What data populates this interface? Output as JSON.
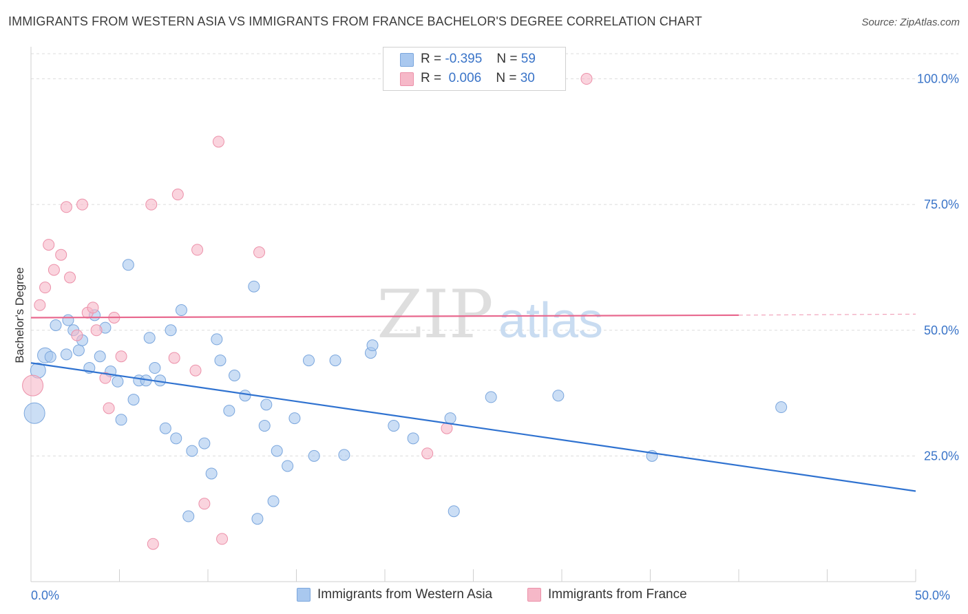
{
  "title": "IMMIGRANTS FROM WESTERN ASIA VS IMMIGRANTS FROM FRANCE BACHELOR'S DEGREE CORRELATION CHART",
  "source": "Source: ZipAtlas.com",
  "watermark": {
    "zip": "ZIP",
    "atlas": "atlas"
  },
  "legend": {
    "rows": [
      {
        "r_label": "R =",
        "r_value": "-0.395",
        "n_label": "N =",
        "n_value": "59",
        "color": "#a9c8ef"
      },
      {
        "r_label": "R =",
        "r_value": "0.006",
        "n_label": "N =",
        "n_value": "30",
        "color": "#f6b8c8"
      }
    ]
  },
  "bottom_legend": [
    {
      "label": "Immigrants from Western Asia",
      "color": "#a9c8ef"
    },
    {
      "label": "Immigrants from France",
      "color": "#f6b8c8"
    }
  ],
  "chart_data": {
    "type": "scatter",
    "ylabel": "Bachelor's Degree",
    "xlabel": "",
    "xlim": [
      0,
      50
    ],
    "ylim": [
      0,
      105
    ],
    "x_tick_labels": [
      {
        "value": 0,
        "label": "0.0%"
      },
      {
        "value": 50,
        "label": "50.0%"
      }
    ],
    "y_tick_labels": [
      {
        "value": 100,
        "label": "100.0%"
      },
      {
        "value": 75,
        "label": "75.0%"
      },
      {
        "value": 50,
        "label": "50.0%"
      },
      {
        "value": 25,
        "label": "25.0%"
      }
    ],
    "series": [
      {
        "name": "Immigrants from Western Asia",
        "color": "#a9c8ef",
        "stroke": "#7aa6dd",
        "trend_color": "#2f72d0",
        "trend": {
          "x0": 0,
          "y0": 43.5,
          "x1": 50,
          "y1": 18.0
        },
        "points": [
          [
            0.2,
            33.5,
            3
          ],
          [
            0.4,
            42.0,
            2
          ],
          [
            0.8,
            45.0,
            2
          ],
          [
            1.1,
            44.7,
            1
          ],
          [
            1.4,
            51.0,
            1
          ],
          [
            2.0,
            45.2,
            1
          ],
          [
            2.1,
            52.0,
            1
          ],
          [
            2.4,
            50.0,
            1
          ],
          [
            2.7,
            46.0,
            1
          ],
          [
            2.9,
            48.0,
            1
          ],
          [
            3.3,
            42.5,
            1
          ],
          [
            3.6,
            53.0,
            1
          ],
          [
            3.9,
            44.8,
            1
          ],
          [
            4.2,
            50.5,
            1
          ],
          [
            4.5,
            41.8,
            1
          ],
          [
            4.9,
            39.8,
            1
          ],
          [
            5.1,
            32.2,
            1
          ],
          [
            5.5,
            63.0,
            1
          ],
          [
            5.8,
            36.2,
            1
          ],
          [
            6.1,
            40.0,
            1
          ],
          [
            6.5,
            40.0,
            1
          ],
          [
            6.7,
            48.5,
            1
          ],
          [
            7.0,
            42.5,
            1
          ],
          [
            7.3,
            40.0,
            1
          ],
          [
            7.6,
            30.5,
            1
          ],
          [
            7.9,
            50.0,
            1
          ],
          [
            8.2,
            28.5,
            1
          ],
          [
            8.5,
            54.0,
            1
          ],
          [
            8.9,
            13.0,
            1
          ],
          [
            9.1,
            26.0,
            1
          ],
          [
            9.8,
            27.5,
            1
          ],
          [
            10.2,
            21.5,
            1
          ],
          [
            10.5,
            48.2,
            1
          ],
          [
            10.7,
            44.0,
            1
          ],
          [
            11.2,
            34.0,
            1
          ],
          [
            11.5,
            41.0,
            1
          ],
          [
            12.1,
            37.0,
            1
          ],
          [
            12.6,
            58.7,
            1
          ],
          [
            12.8,
            12.5,
            1
          ],
          [
            13.2,
            31.0,
            1
          ],
          [
            13.3,
            35.2,
            1
          ],
          [
            13.7,
            16.0,
            1
          ],
          [
            13.9,
            26.0,
            1
          ],
          [
            14.5,
            23.0,
            1
          ],
          [
            14.9,
            32.5,
            1
          ],
          [
            15.7,
            44.0,
            1
          ],
          [
            16.0,
            25.0,
            1
          ],
          [
            17.2,
            44.0,
            1
          ],
          [
            17.7,
            25.2,
            1
          ],
          [
            19.2,
            45.5,
            1
          ],
          [
            19.3,
            47.0,
            1
          ],
          [
            20.5,
            31.0,
            1
          ],
          [
            21.6,
            28.5,
            1
          ],
          [
            23.7,
            32.5,
            1
          ],
          [
            23.9,
            14.0,
            1
          ],
          [
            26.0,
            36.7,
            1
          ],
          [
            29.8,
            37.0,
            1
          ],
          [
            35.1,
            25.0,
            1
          ],
          [
            42.4,
            34.7,
            1
          ]
        ]
      },
      {
        "name": "Immigrants from France",
        "color": "#f6b8c8",
        "stroke": "#ec90a9",
        "trend_color": "#e8688e",
        "trend": {
          "x0": 0,
          "y0": 52.5,
          "x1": 40,
          "y1": 53.0,
          "x2": 50,
          "y2": 53.2
        },
        "points": [
          [
            0.1,
            39.0,
            3
          ],
          [
            0.5,
            55.0,
            1
          ],
          [
            0.8,
            58.5,
            1
          ],
          [
            1.0,
            67.0,
            1
          ],
          [
            1.3,
            62.0,
            1
          ],
          [
            1.7,
            65.0,
            1
          ],
          [
            2.0,
            74.5,
            1
          ],
          [
            2.2,
            60.5,
            1
          ],
          [
            2.6,
            49.0,
            1
          ],
          [
            2.9,
            75.0,
            1
          ],
          [
            3.2,
            53.5,
            1
          ],
          [
            3.5,
            54.5,
            1
          ],
          [
            3.7,
            50.0,
            1
          ],
          [
            4.2,
            40.5,
            1
          ],
          [
            4.4,
            34.5,
            1
          ],
          [
            4.7,
            52.5,
            1
          ],
          [
            5.1,
            44.8,
            1
          ],
          [
            6.8,
            75.0,
            1
          ],
          [
            6.9,
            7.5,
            1
          ],
          [
            8.1,
            44.5,
            1
          ],
          [
            8.3,
            77.0,
            1
          ],
          [
            9.3,
            42.0,
            1
          ],
          [
            9.4,
            66.0,
            1
          ],
          [
            9.8,
            15.5,
            1
          ],
          [
            10.6,
            87.5,
            1
          ],
          [
            10.8,
            8.5,
            1
          ],
          [
            12.9,
            65.5,
            1
          ],
          [
            22.4,
            25.5,
            1
          ],
          [
            23.5,
            30.5,
            1
          ],
          [
            31.4,
            100.0,
            1
          ]
        ]
      }
    ]
  }
}
